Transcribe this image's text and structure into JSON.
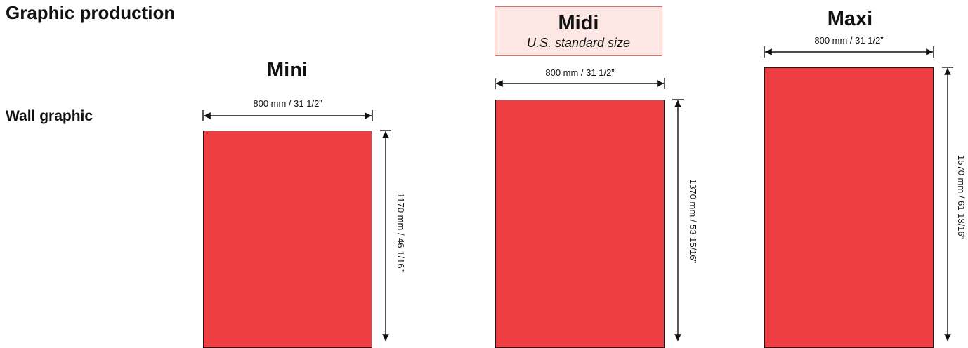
{
  "page_title": "Graphic production",
  "row_label": "Wall graphic",
  "colors": {
    "poster_fill": "#ee3e43",
    "callout_fill": "#fde7e4",
    "callout_border": "#e06b63",
    "outline": "#1a1a1a"
  },
  "sizes": {
    "mini": {
      "name": "Mini",
      "width_label": "800 mm / 31 1/2”",
      "height_label": "1170 mm / 46 1/16”"
    },
    "midi": {
      "name": "Midi",
      "note": "U.S. standard size",
      "width_label": "800 mm / 31 1/2”",
      "height_label": "1370 mm / 53 15/16”"
    },
    "maxi": {
      "name": "Maxi",
      "width_label": "800 mm / 31 1/2”",
      "height_label": "1570 mm / 61 13/16”"
    }
  }
}
